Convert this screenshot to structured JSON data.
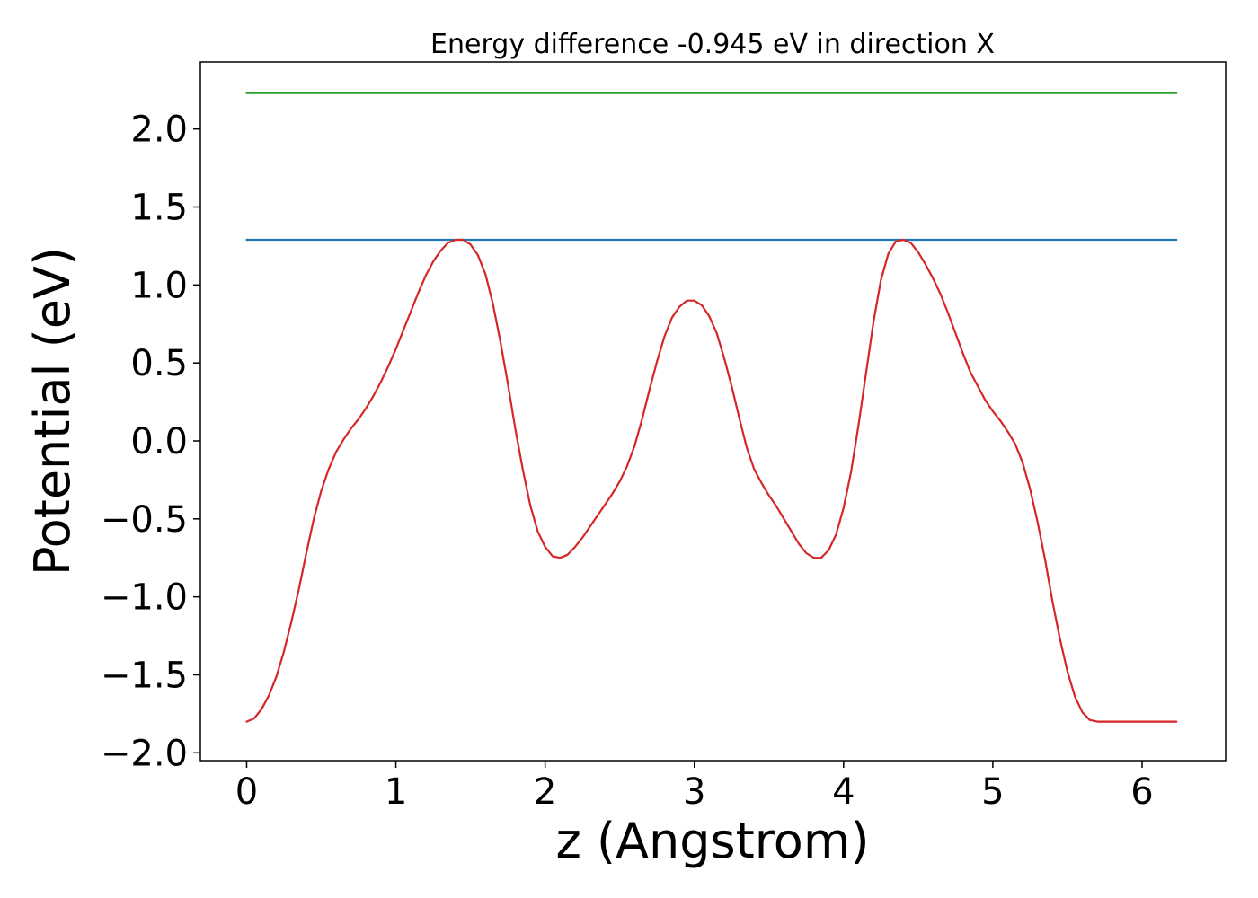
{
  "chart_data": {
    "type": "line",
    "title": "Energy difference -0.945 eV in direction X",
    "xlabel": "z (Angstrom)",
    "ylabel": "Potential (eV)",
    "xlim": [
      -0.31,
      6.56
    ],
    "ylim": [
      -2.05,
      2.43
    ],
    "xticks": [
      0,
      1,
      2,
      3,
      4,
      5,
      6
    ],
    "xtick_labels": [
      "0",
      "1",
      "2",
      "3",
      "4",
      "5",
      "6"
    ],
    "yticks": [
      -2.0,
      -1.5,
      -1.0,
      -0.5,
      0.0,
      0.5,
      1.0,
      1.5,
      2.0
    ],
    "ytick_labels": [
      "−2.0",
      "−1.5",
      "−1.0",
      "−0.5",
      "0.0",
      "0.5",
      "1.0",
      "1.5",
      "2.0"
    ],
    "grid": false,
    "series": [
      {
        "color": "#2ca02c",
        "x": [
          0,
          6.23
        ],
        "y": [
          2.23,
          2.23
        ]
      },
      {
        "color": "#1f77b4",
        "x": [
          0,
          6.23
        ],
        "y": [
          1.29,
          1.29
        ]
      },
      {
        "color": "#d62728",
        "x": [
          0,
          0.05,
          0.1,
          0.15,
          0.2,
          0.25,
          0.3,
          0.35,
          0.4,
          0.45,
          0.5,
          0.55,
          0.6,
          0.65,
          0.7,
          0.75,
          0.8,
          0.85,
          0.9,
          0.95,
          1.0,
          1.05,
          1.1,
          1.15,
          1.2,
          1.25,
          1.3,
          1.35,
          1.4,
          1.45,
          1.5,
          1.55,
          1.6,
          1.65,
          1.7,
          1.75,
          1.8,
          1.85,
          1.9,
          1.95,
          2.0,
          2.05,
          2.1,
          2.15,
          2.2,
          2.25,
          2.3,
          2.35,
          2.4,
          2.45,
          2.5,
          2.55,
          2.6,
          2.65,
          2.7,
          2.75,
          2.8,
          2.85,
          2.9,
          2.95,
          3.0,
          3.05,
          3.1,
          3.15,
          3.2,
          3.25,
          3.3,
          3.35,
          3.4,
          3.45,
          3.5,
          3.55,
          3.6,
          3.65,
          3.7,
          3.75,
          3.8,
          3.85,
          3.9,
          3.95,
          4.0,
          4.05,
          4.1,
          4.15,
          4.2,
          4.25,
          4.3,
          4.35,
          4.4,
          4.45,
          4.5,
          4.55,
          4.6,
          4.65,
          4.7,
          4.75,
          4.8,
          4.85,
          4.9,
          4.95,
          5.0,
          5.05,
          5.1,
          5.15,
          5.2,
          5.25,
          5.3,
          5.35,
          5.4,
          5.45,
          5.5,
          5.55,
          5.6,
          5.65,
          5.7,
          5.75,
          5.8,
          5.85,
          5.9,
          5.95,
          6.0,
          6.05,
          6.1,
          6.15,
          6.2,
          6.23
        ],
        "y": [
          -1.8,
          -1.78,
          -1.72,
          -1.63,
          -1.51,
          -1.35,
          -1.16,
          -0.95,
          -0.72,
          -0.5,
          -0.32,
          -0.18,
          -0.07,
          0.01,
          0.08,
          0.14,
          0.21,
          0.29,
          0.38,
          0.48,
          0.59,
          0.71,
          0.83,
          0.95,
          1.06,
          1.15,
          1.22,
          1.27,
          1.29,
          1.29,
          1.26,
          1.19,
          1.07,
          0.88,
          0.64,
          0.37,
          0.08,
          -0.18,
          -0.41,
          -0.58,
          -0.68,
          -0.74,
          -0.75,
          -0.73,
          -0.68,
          -0.62,
          -0.55,
          -0.48,
          -0.41,
          -0.34,
          -0.26,
          -0.16,
          -0.03,
          0.14,
          0.33,
          0.51,
          0.67,
          0.79,
          0.86,
          0.9,
          0.9,
          0.87,
          0.8,
          0.69,
          0.53,
          0.35,
          0.15,
          -0.04,
          -0.18,
          -0.27,
          -0.35,
          -0.42,
          -0.5,
          -0.58,
          -0.66,
          -0.72,
          -0.75,
          -0.75,
          -0.7,
          -0.6,
          -0.43,
          -0.2,
          0.1,
          0.43,
          0.76,
          1.03,
          1.2,
          1.28,
          1.29,
          1.27,
          1.21,
          1.13,
          1.04,
          0.94,
          0.82,
          0.69,
          0.56,
          0.44,
          0.35,
          0.26,
          0.19,
          0.13,
          0.06,
          -0.02,
          -0.14,
          -0.31,
          -0.52,
          -0.76,
          -1.03,
          -1.27,
          -1.48,
          -1.64,
          -1.74,
          -1.79,
          -1.8,
          -1.8,
          -1.8,
          -1.8,
          -1.8,
          -1.8,
          -1.8,
          -1.8,
          -1.8,
          -1.8,
          -1.8,
          -1.8
        ],
        "note_x_used": true
      }
    ]
  }
}
